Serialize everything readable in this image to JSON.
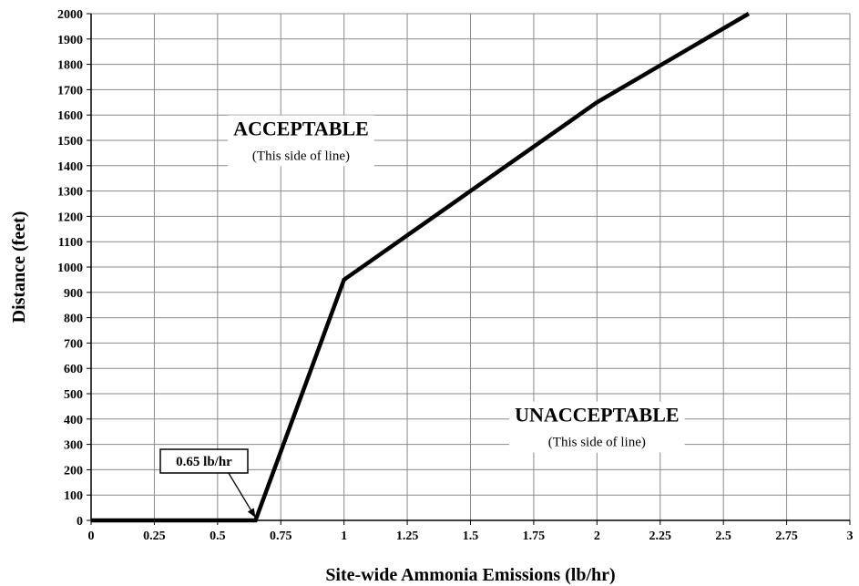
{
  "chart_data": {
    "type": "line",
    "title": "",
    "xlabel": "Site-wide Ammonia Emissions (lb/hr)",
    "ylabel": "Distance (feet)",
    "xlim": [
      0,
      3
    ],
    "ylim": [
      0,
      2000
    ],
    "x_ticks": [
      0,
      0.25,
      0.5,
      0.75,
      1,
      1.25,
      1.5,
      1.75,
      2,
      2.25,
      2.5,
      2.75,
      3
    ],
    "x_tick_labels": [
      "0",
      "0.25",
      "0.5",
      "0.75",
      "1",
      "1.25",
      "1.5",
      "1.75",
      "2",
      "2.25",
      "2.5",
      "2.75",
      "3"
    ],
    "y_ticks": [
      0,
      100,
      200,
      300,
      400,
      500,
      600,
      700,
      800,
      900,
      1000,
      1100,
      1200,
      1300,
      1400,
      1500,
      1600,
      1700,
      1800,
      1900,
      2000
    ],
    "y_tick_labels": [
      "0",
      "100",
      "200",
      "300",
      "400",
      "500",
      "600",
      "700",
      "800",
      "900",
      "1000",
      "1100",
      "1200",
      "1300",
      "1400",
      "1500",
      "1600",
      "1700",
      "1800",
      "1900",
      "2000"
    ],
    "grid": true,
    "series": [
      {
        "x": [
          0,
          0.65,
          1.0,
          2.0,
          2.6
        ],
        "y": [
          0,
          0,
          950,
          1650,
          2000
        ],
        "color": "#000000"
      }
    ],
    "annotations": {
      "acceptable": {
        "title": "ACCEPTABLE",
        "subtitle": "(This side of line)",
        "x": 0.83,
        "y": 1520
      },
      "unacceptable": {
        "title": "UNACCEPTABLE",
        "subtitle": "(This side of line)",
        "x": 2.0,
        "y": 390
      },
      "callout": {
        "label": "0.65 lb/hr",
        "x": 0.65,
        "y": 0
      }
    }
  }
}
